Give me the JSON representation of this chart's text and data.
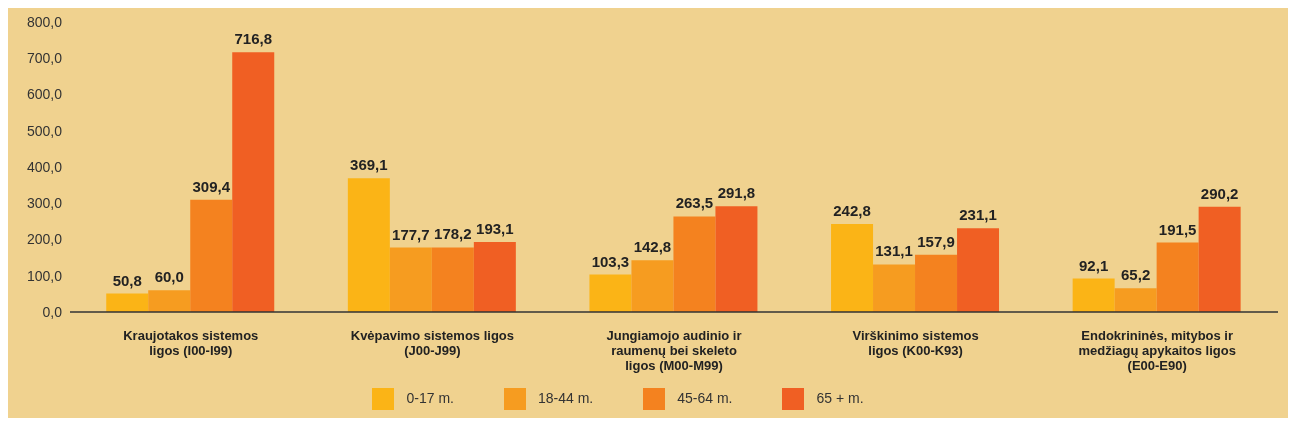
{
  "chart_data": {
    "type": "bar",
    "categories": [
      "Kraujotakos sistemos ligos (I00-I99)",
      "Kvėpavimo sistemos ligos (J00-J99)",
      "Jungiamojo audinio ir raumenų bei skeleto ligos (M00-M99)",
      "Virškinimo sistemos ligos (K00-K93)",
      "Endokrininės, mitybos ir medžiagų apykaitos ligos (E00-E90)"
    ],
    "series": [
      {
        "name": "0-17 m.",
        "color": "#fbb416",
        "values": [
          50.8,
          369.1,
          103.3,
          242.8,
          92.1
        ],
        "value_labels": [
          "50,8",
          "369,1",
          "103,3",
          "242,8",
          "92,1"
        ]
      },
      {
        "name": "18-44 m.",
        "color": "#f69c20",
        "values": [
          60.0,
          177.7,
          142.8,
          131.1,
          65.2
        ],
        "value_labels": [
          "60,0",
          "177,7",
          "142,8",
          "131,1",
          "65,2"
        ]
      },
      {
        "name": "45-64 m.",
        "color": "#f4821f",
        "values": [
          309.4,
          178.2,
          263.5,
          157.9,
          191.5
        ],
        "value_labels": [
          "309,4",
          "178,2",
          "263,5",
          "157,9",
          "191,5"
        ]
      },
      {
        "name": "65 + m.",
        "color": "#f05f23",
        "values": [
          716.8,
          193.1,
          291.8,
          231.1,
          290.2
        ],
        "value_labels": [
          "716,8",
          "193,1",
          "291,8",
          "231,1",
          "290,2"
        ]
      }
    ],
    "ylim": [
      0,
      800
    ],
    "yticks": [
      {
        "value": 0,
        "label": "0,0"
      },
      {
        "value": 100,
        "label": "100,0"
      },
      {
        "value": 200,
        "label": "200,0"
      },
      {
        "value": 300,
        "label": "300,0"
      },
      {
        "value": 400,
        "label": "400,0"
      },
      {
        "value": 500,
        "label": "500,0"
      },
      {
        "value": 600,
        "label": "600,0"
      },
      {
        "value": 700,
        "label": "700,0"
      },
      {
        "value": 800,
        "label": "800,0"
      }
    ],
    "grid": false,
    "legend": "bottom"
  }
}
